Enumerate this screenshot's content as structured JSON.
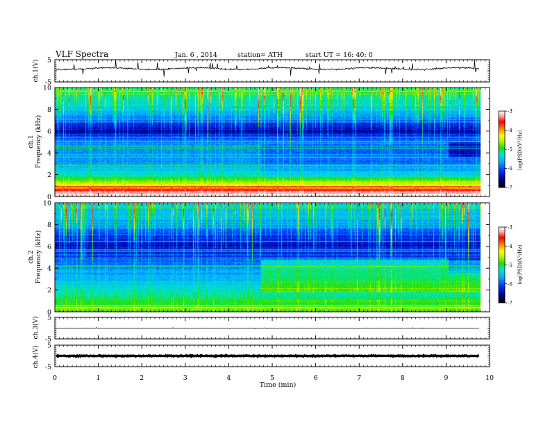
{
  "header": {
    "title": "VLF Spectra",
    "date": "Jan. 6 , 2014",
    "station": "station= ATH",
    "start": "start UT = 16: 40: 0"
  },
  "colors": {
    "colormap": [
      "#000010",
      "#00008a",
      "#0033ff",
      "#00b0ff",
      "#00e6c8",
      "#20e000",
      "#b0f000",
      "#ffff00",
      "#ff9000",
      "#ff0000",
      "#ffb0b0",
      "#ffffff"
    ],
    "waveform": "#000000",
    "frame": "#000000"
  },
  "chart_data": [
    {
      "type": "line",
      "panel": "ch1-waveform",
      "ylabel": "ch.1(V)",
      "yticks": [
        "5",
        "-5"
      ],
      "ylim": [
        -5,
        5
      ],
      "xlim": [
        0,
        10
      ],
      "description": "broadband waveform, baseline near +1 V with impulsive spikes",
      "baseline": 1.0
    },
    {
      "type": "heatmap",
      "panel": "ch1-spectrogram",
      "ylabel": "Frequency (kHz)",
      "channel_label": "ch.1",
      "yticks": [
        "0",
        "2",
        "4",
        "6",
        "8",
        "10"
      ],
      "ylim": [
        0,
        10
      ],
      "xlim": [
        0,
        9.8
      ],
      "colorbar": {
        "label": "log(PSD)(V²/Hz)",
        "ticks": [
          "-3",
          "-4",
          "-5",
          "-6",
          "-7"
        ],
        "range": [
          -7,
          -3
        ]
      },
      "profile_khz_logpsd": [
        [
          0,
          -3.2
        ],
        [
          0.5,
          -3.6
        ],
        [
          1,
          -4.6
        ],
        [
          2,
          -5.6
        ],
        [
          3,
          -6.0
        ],
        [
          4,
          -6.0
        ],
        [
          5,
          -6.0
        ],
        [
          5.5,
          -6.3
        ],
        [
          6,
          -6.6
        ],
        [
          7,
          -6.2
        ],
        [
          8,
          -5.8
        ],
        [
          9,
          -5.5
        ],
        [
          10,
          -5.4
        ]
      ],
      "regime_change_min": [
        4.75,
        9.05
      ]
    },
    {
      "type": "heatmap",
      "panel": "ch2-spectrogram",
      "ylabel": "Frequency (kHz)",
      "channel_label": "ch.2",
      "yticks": [
        "0",
        "2",
        "4",
        "6",
        "8",
        "10"
      ],
      "ylim": [
        0,
        10
      ],
      "xlim": [
        0,
        9.8
      ],
      "colorbar": {
        "label": "log(PSD)(V²/Hz)",
        "ticks": [
          "-3",
          "-4",
          "-5",
          "-6",
          "-7"
        ],
        "range": [
          -7,
          -3
        ]
      },
      "profile_khz_logpsd": [
        [
          0,
          -5.0
        ],
        [
          0.5,
          -5.2
        ],
        [
          1,
          -5.3
        ],
        [
          2,
          -5.6
        ],
        [
          3,
          -5.9
        ],
        [
          4,
          -6.0
        ],
        [
          5,
          -6.3
        ],
        [
          5.5,
          -6.4
        ],
        [
          6,
          -6.6
        ],
        [
          7,
          -6.3
        ],
        [
          8,
          -6.0
        ],
        [
          9,
          -5.8
        ],
        [
          10,
          -5.7
        ]
      ],
      "regime_change_min": [
        4.75,
        9.05
      ]
    },
    {
      "type": "line",
      "panel": "ch3-waveform",
      "ylabel": "ch.3(V)",
      "yticks": [
        "5",
        "-5"
      ],
      "ylim": [
        -5,
        5
      ],
      "xlim": [
        0,
        9.8
      ],
      "baseline": 0.0
    },
    {
      "type": "line",
      "panel": "ch4-waveform",
      "ylabel": "ch.4(V)",
      "yticks": [
        "5",
        "-5"
      ],
      "ylim": [
        -5,
        5
      ],
      "xlim": [
        0,
        9.8
      ],
      "baseline": 0.0
    },
    {
      "type": "axis",
      "panel": "time-axis",
      "xlabel": "Time (min)",
      "xticks": [
        "0",
        "1",
        "2",
        "3",
        "4",
        "5",
        "6",
        "7",
        "8",
        "9",
        "10"
      ],
      "xlim": [
        0,
        10
      ]
    }
  ]
}
